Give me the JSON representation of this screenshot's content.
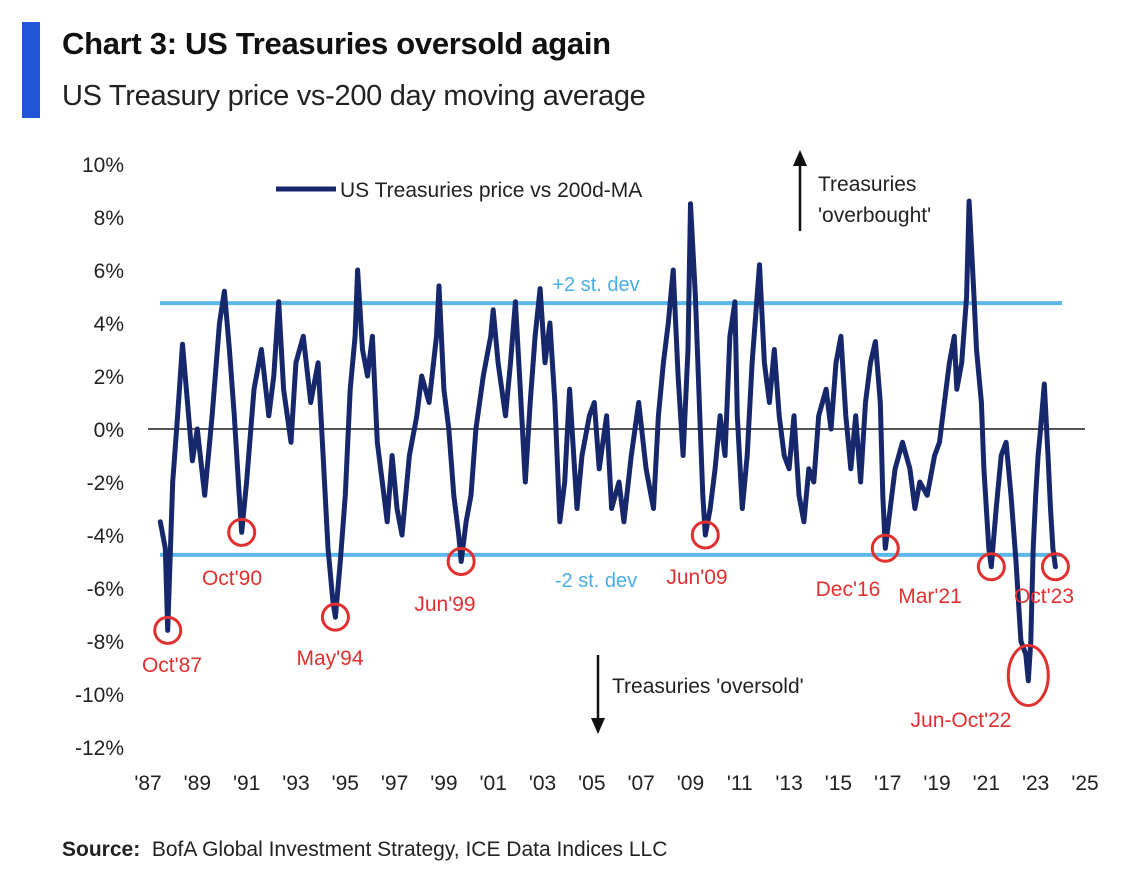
{
  "header": {
    "title": "Chart 3: US Treasuries oversold again",
    "subtitle": "US Treasury price vs-200 day moving average"
  },
  "footer": {
    "source_label": "Source:",
    "source_text": "BofA Global Investment Strategy, ICE Data Indices LLC"
  },
  "colors": {
    "accent": "#1f55d6",
    "series": "#16286b",
    "band": "#5cb8ea",
    "band_text": "#4aaee6",
    "annotation": "#e0302f",
    "zero_line": "#555555"
  },
  "chart_data": {
    "type": "line",
    "ylim": [
      -12,
      10
    ],
    "xlim": [
      1987,
      2025
    ],
    "y_ticks": [
      10,
      8,
      6,
      4,
      2,
      0,
      -2,
      -4,
      -6,
      -8,
      -10,
      -12
    ],
    "y_tick_labels": [
      "10%",
      "8%",
      "6%",
      "4%",
      "2%",
      "0%",
      "-2%",
      "-4%",
      "-6%",
      "-8%",
      "-10%",
      "-12%"
    ],
    "x_ticks": [
      1987,
      1989,
      1991,
      1993,
      1995,
      1997,
      1999,
      2001,
      2003,
      2005,
      2007,
      2009,
      2011,
      2013,
      2015,
      2017,
      2019,
      2021,
      2023,
      2025
    ],
    "x_tick_labels": [
      "'87",
      "'89",
      "'91",
      "'93",
      "'95",
      "'97",
      "'99",
      "'01",
      "'03",
      "'05",
      "'07",
      "'09",
      "'11",
      "'13",
      "'15",
      "'17",
      "'19",
      "'21",
      "'23",
      "'25"
    ],
    "grid": false,
    "legend": "top-left",
    "series": [
      {
        "name": "US Treasuries price vs 200d-MA",
        "points": [
          [
            1987.5,
            -3.5
          ],
          [
            1987.7,
            -4.5
          ],
          [
            1987.8,
            -7.6
          ],
          [
            1988.0,
            -2.0
          ],
          [
            1988.2,
            0.5
          ],
          [
            1988.4,
            3.2
          ],
          [
            1988.6,
            1.0
          ],
          [
            1988.8,
            -1.2
          ],
          [
            1989.0,
            0.0
          ],
          [
            1989.3,
            -2.5
          ],
          [
            1989.6,
            0.5
          ],
          [
            1989.9,
            4.0
          ],
          [
            1990.1,
            5.2
          ],
          [
            1990.3,
            3.0
          ],
          [
            1990.5,
            0.5
          ],
          [
            1990.7,
            -2.5
          ],
          [
            1990.8,
            -3.9
          ],
          [
            1991.0,
            -2.0
          ],
          [
            1991.3,
            1.5
          ],
          [
            1991.6,
            3.0
          ],
          [
            1991.9,
            0.5
          ],
          [
            1992.1,
            2.0
          ],
          [
            1992.3,
            4.8
          ],
          [
            1992.5,
            1.5
          ],
          [
            1992.8,
            -0.5
          ],
          [
            1993.0,
            2.5
          ],
          [
            1993.3,
            3.5
          ],
          [
            1993.6,
            1.0
          ],
          [
            1993.9,
            2.5
          ],
          [
            1994.1,
            -1.0
          ],
          [
            1994.3,
            -4.5
          ],
          [
            1994.5,
            -6.5
          ],
          [
            1994.6,
            -7.1
          ],
          [
            1994.8,
            -5.0
          ],
          [
            1995.0,
            -2.5
          ],
          [
            1995.2,
            1.5
          ],
          [
            1995.4,
            3.5
          ],
          [
            1995.5,
            6.0
          ],
          [
            1995.7,
            3.0
          ],
          [
            1995.9,
            2.0
          ],
          [
            1996.1,
            3.5
          ],
          [
            1996.3,
            -0.5
          ],
          [
            1996.5,
            -2.0
          ],
          [
            1996.7,
            -3.5
          ],
          [
            1996.9,
            -1.0
          ],
          [
            1997.1,
            -3.0
          ],
          [
            1997.3,
            -4.0
          ],
          [
            1997.6,
            -1.0
          ],
          [
            1997.9,
            0.5
          ],
          [
            1998.1,
            2.0
          ],
          [
            1998.4,
            1.0
          ],
          [
            1998.7,
            3.5
          ],
          [
            1998.8,
            5.4
          ],
          [
            1999.0,
            1.5
          ],
          [
            1999.2,
            0.0
          ],
          [
            1999.4,
            -2.5
          ],
          [
            1999.6,
            -4.0
          ],
          [
            1999.7,
            -5.0
          ],
          [
            1999.9,
            -3.5
          ],
          [
            2000.1,
            -2.5
          ],
          [
            2000.3,
            0.0
          ],
          [
            2000.6,
            2.0
          ],
          [
            2000.9,
            3.5
          ],
          [
            2001.0,
            4.5
          ],
          [
            2001.2,
            2.5
          ],
          [
            2001.5,
            0.5
          ],
          [
            2001.7,
            2.5
          ],
          [
            2001.9,
            4.8
          ],
          [
            2002.1,
            1.5
          ],
          [
            2002.3,
            -2.0
          ],
          [
            2002.5,
            1.0
          ],
          [
            2002.7,
            3.5
          ],
          [
            2002.9,
            5.3
          ],
          [
            2003.1,
            2.5
          ],
          [
            2003.3,
            4.0
          ],
          [
            2003.5,
            1.0
          ],
          [
            2003.7,
            -3.5
          ],
          [
            2003.9,
            -2.0
          ],
          [
            2004.1,
            1.5
          ],
          [
            2004.4,
            -3.0
          ],
          [
            2004.6,
            -1.0
          ],
          [
            2004.9,
            0.5
          ],
          [
            2005.1,
            1.0
          ],
          [
            2005.3,
            -1.5
          ],
          [
            2005.6,
            0.5
          ],
          [
            2005.8,
            -3.0
          ],
          [
            2006.1,
            -2.0
          ],
          [
            2006.3,
            -3.5
          ],
          [
            2006.6,
            -1.0
          ],
          [
            2006.9,
            1.0
          ],
          [
            2007.2,
            -1.5
          ],
          [
            2007.5,
            -3.0
          ],
          [
            2007.7,
            0.5
          ],
          [
            2007.9,
            2.5
          ],
          [
            2008.1,
            4.0
          ],
          [
            2008.3,
            6.0
          ],
          [
            2008.5,
            2.0
          ],
          [
            2008.7,
            -1.0
          ],
          [
            2008.9,
            3.0
          ],
          [
            2009.0,
            8.5
          ],
          [
            2009.2,
            5.0
          ],
          [
            2009.4,
            0.0
          ],
          [
            2009.5,
            -2.5
          ],
          [
            2009.6,
            -4.0
          ],
          [
            2009.8,
            -3.0
          ],
          [
            2010.0,
            -1.5
          ],
          [
            2010.2,
            0.5
          ],
          [
            2010.4,
            -1.0
          ],
          [
            2010.6,
            3.5
          ],
          [
            2010.8,
            4.8
          ],
          [
            2010.9,
            0.5
          ],
          [
            2011.1,
            -3.0
          ],
          [
            2011.3,
            -1.0
          ],
          [
            2011.5,
            2.5
          ],
          [
            2011.7,
            5.0
          ],
          [
            2011.8,
            6.2
          ],
          [
            2012.0,
            2.5
          ],
          [
            2012.2,
            1.0
          ],
          [
            2012.4,
            3.0
          ],
          [
            2012.6,
            0.5
          ],
          [
            2012.8,
            -1.0
          ],
          [
            2013.0,
            -1.5
          ],
          [
            2013.2,
            0.5
          ],
          [
            2013.4,
            -2.5
          ],
          [
            2013.6,
            -3.5
          ],
          [
            2013.8,
            -1.5
          ],
          [
            2014.0,
            -2.0
          ],
          [
            2014.2,
            0.5
          ],
          [
            2014.5,
            1.5
          ],
          [
            2014.7,
            0.0
          ],
          [
            2014.9,
            2.5
          ],
          [
            2015.1,
            3.5
          ],
          [
            2015.3,
            0.5
          ],
          [
            2015.5,
            -1.5
          ],
          [
            2015.7,
            0.5
          ],
          [
            2015.9,
            -2.0
          ],
          [
            2016.1,
            1.0
          ],
          [
            2016.3,
            2.5
          ],
          [
            2016.5,
            3.3
          ],
          [
            2016.7,
            1.0
          ],
          [
            2016.8,
            -2.5
          ],
          [
            2016.9,
            -4.5
          ],
          [
            2017.1,
            -3.0
          ],
          [
            2017.3,
            -1.5
          ],
          [
            2017.6,
            -0.5
          ],
          [
            2017.9,
            -1.5
          ],
          [
            2018.1,
            -3.0
          ],
          [
            2018.3,
            -2.0
          ],
          [
            2018.6,
            -2.5
          ],
          [
            2018.9,
            -1.0
          ],
          [
            2019.1,
            -0.5
          ],
          [
            2019.3,
            1.0
          ],
          [
            2019.5,
            2.5
          ],
          [
            2019.7,
            3.5
          ],
          [
            2019.8,
            1.5
          ],
          [
            2020.0,
            2.5
          ],
          [
            2020.2,
            5.0
          ],
          [
            2020.3,
            8.6
          ],
          [
            2020.5,
            5.0
          ],
          [
            2020.6,
            3.0
          ],
          [
            2020.8,
            1.0
          ],
          [
            2020.9,
            -1.5
          ],
          [
            2021.1,
            -4.5
          ],
          [
            2021.2,
            -5.2
          ],
          [
            2021.4,
            -3.0
          ],
          [
            2021.6,
            -1.0
          ],
          [
            2021.8,
            -0.5
          ],
          [
            2022.0,
            -2.5
          ],
          [
            2022.2,
            -5.0
          ],
          [
            2022.4,
            -8.0
          ],
          [
            2022.6,
            -8.5
          ],
          [
            2022.7,
            -9.5
          ],
          [
            2022.8,
            -8.0
          ],
          [
            2022.9,
            -4.5
          ],
          [
            2023.0,
            -2.5
          ],
          [
            2023.1,
            -1.0
          ],
          [
            2023.2,
            0.0
          ],
          [
            2023.35,
            1.7
          ],
          [
            2023.5,
            -1.0
          ],
          [
            2023.6,
            -3.0
          ],
          [
            2023.7,
            -4.5
          ],
          [
            2023.8,
            -5.2
          ]
        ]
      }
    ],
    "reference_lines": [
      {
        "label": "+2 st. dev",
        "y": 4.75
      },
      {
        "label": "-2 st. dev",
        "y": -4.75
      },
      {
        "label": "",
        "y": 0
      }
    ],
    "annotations": {
      "circled": [
        {
          "label": "Oct'87",
          "x": 1987.8,
          "y": -7.6
        },
        {
          "label": "Oct'90",
          "x": 1990.8,
          "y": -3.9
        },
        {
          "label": "May'94",
          "x": 1994.6,
          "y": -7.1
        },
        {
          "label": "Jun'99",
          "x": 1999.7,
          "y": -5.0
        },
        {
          "label": "Jun'09",
          "x": 2009.6,
          "y": -4.0
        },
        {
          "label": "Dec'16",
          "x": 2016.9,
          "y": -4.5
        },
        {
          "label": "Mar'21",
          "x": 2021.2,
          "y": -5.2
        },
        {
          "label": "Jun-Oct'22",
          "x": 2022.7,
          "y": -9.0
        },
        {
          "label": "Oct'23",
          "x": 2023.8,
          "y": -5.2
        }
      ],
      "overbought": {
        "line1": "Treasuries",
        "line2": "'overbought'"
      },
      "oversold": {
        "text": "Treasuries 'oversold'"
      }
    }
  }
}
